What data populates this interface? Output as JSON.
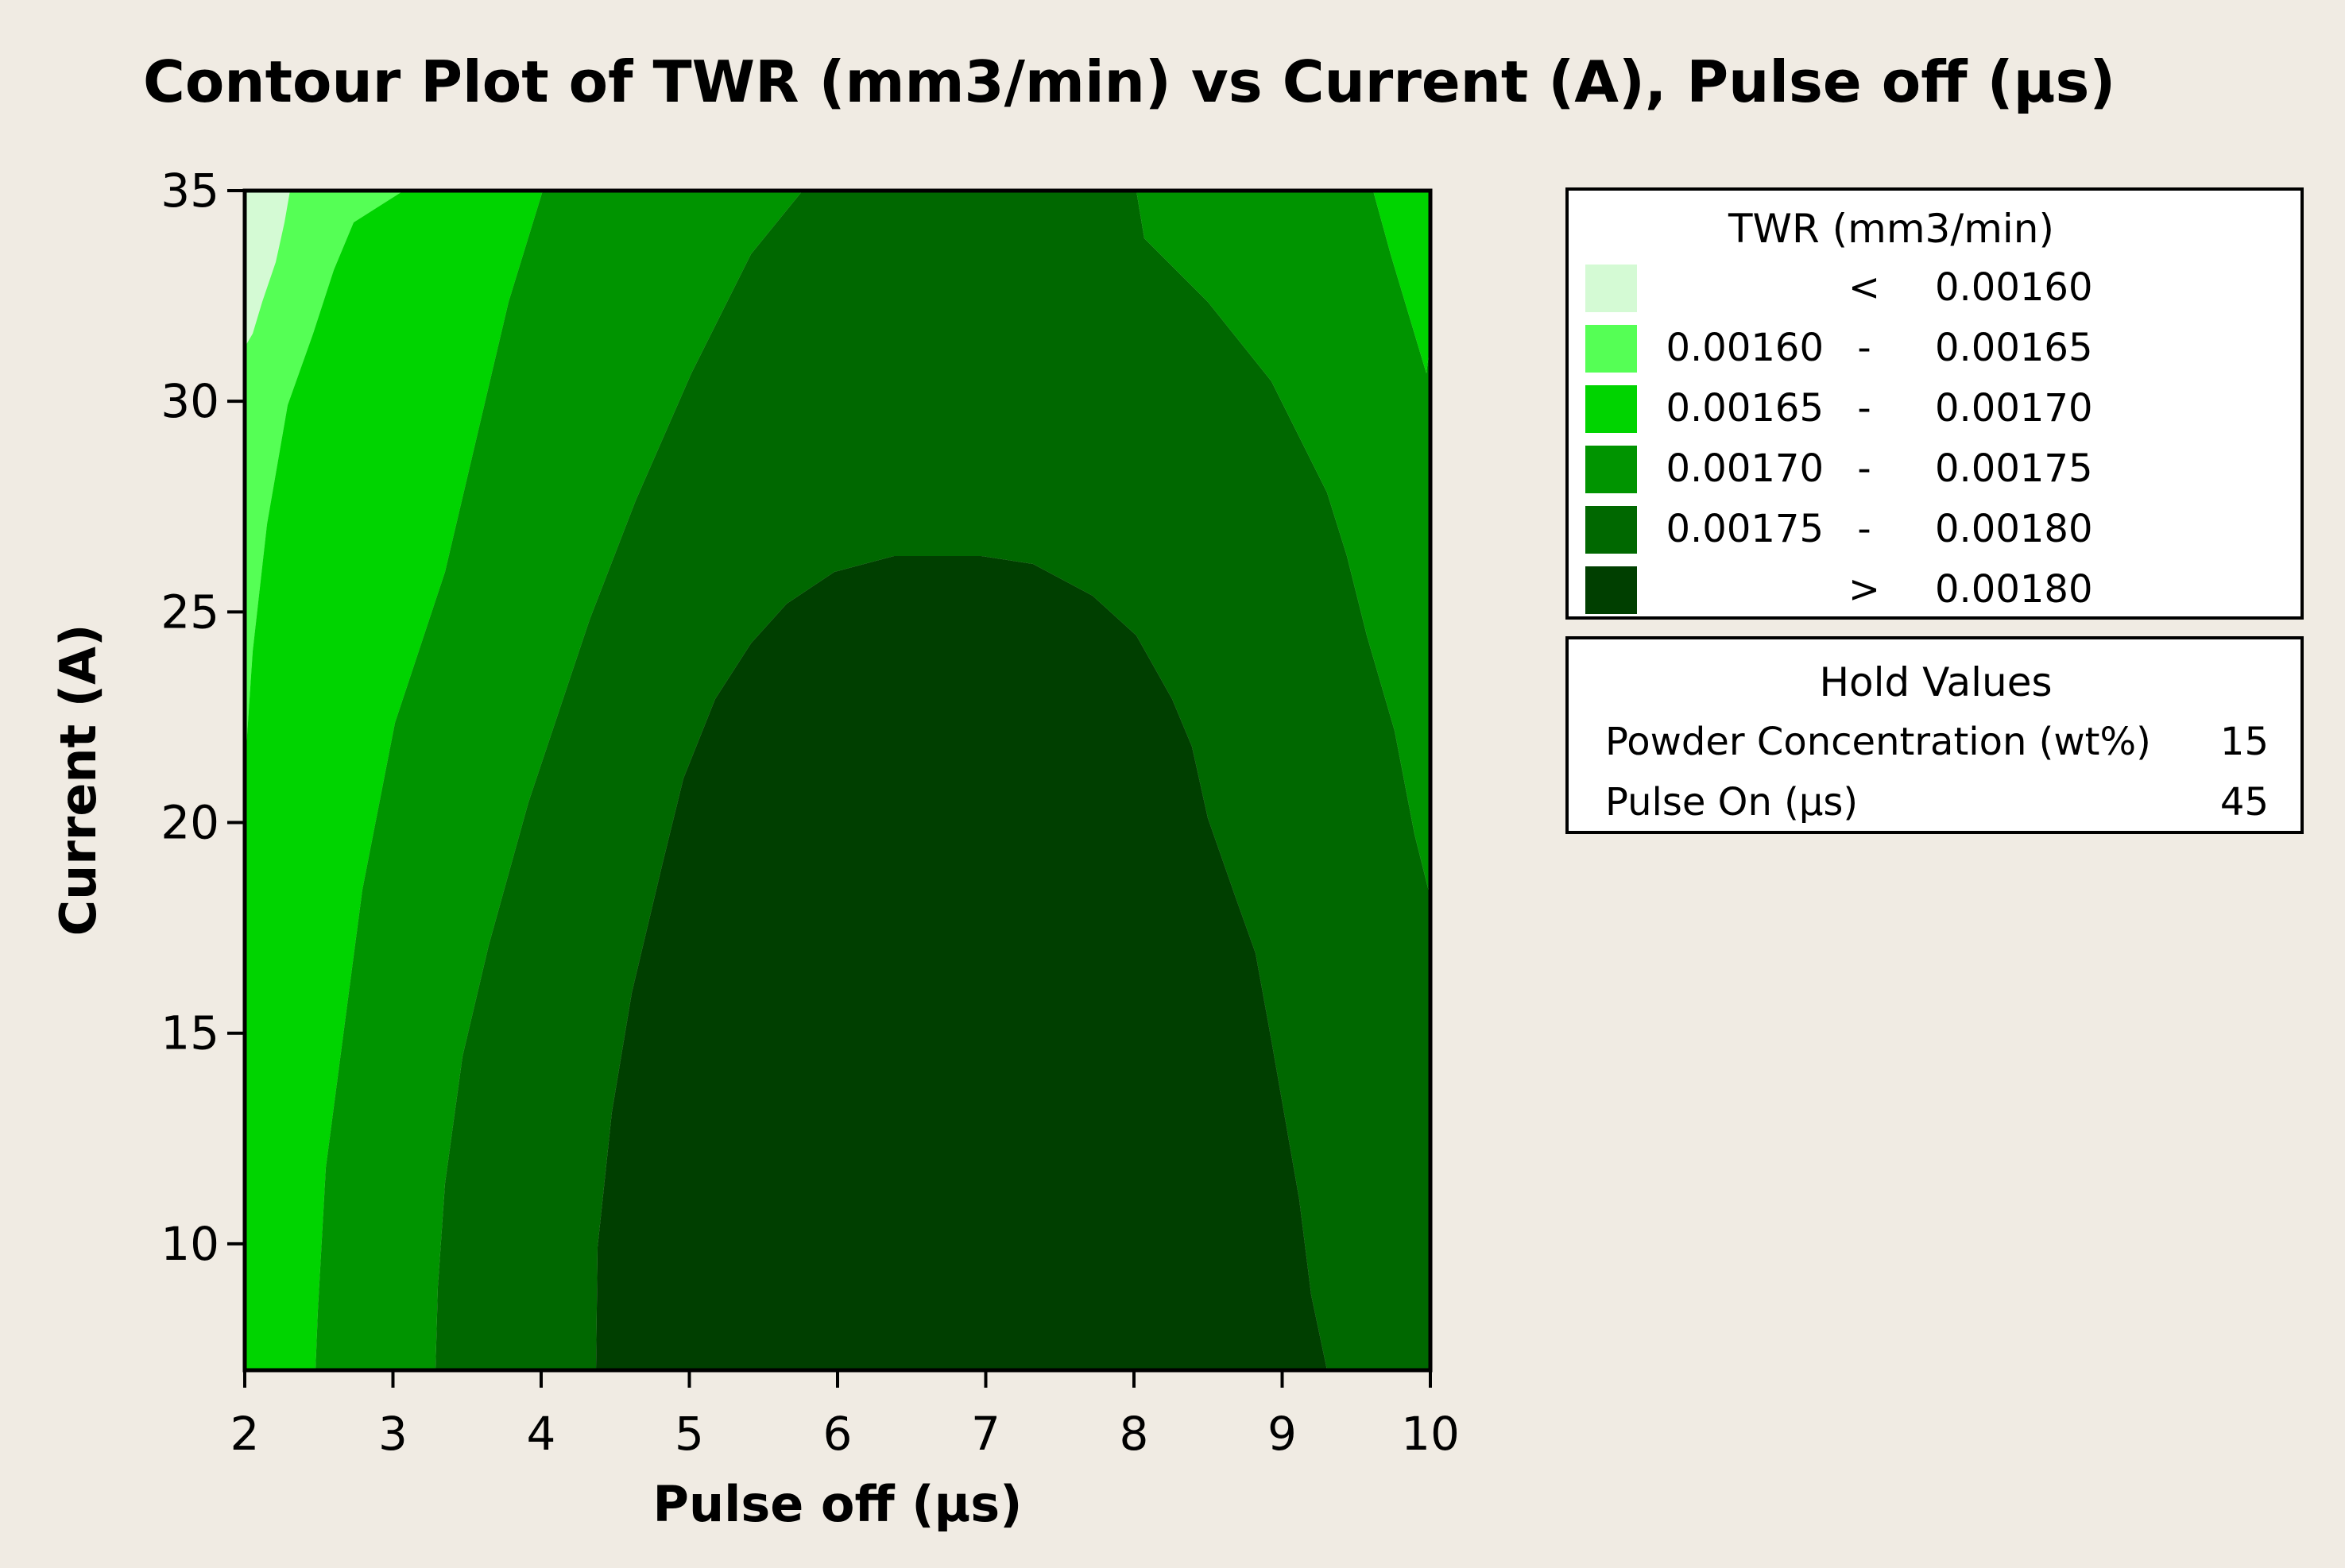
{
  "chart_data": {
    "type": "contour",
    "title": "Contour Plot of TWR (mm3/min) vs Current (A), Pulse off (µs)",
    "xlabel": "Pulse off (µs)",
    "ylabel": "Current (A)",
    "xlim": [
      2,
      10
    ],
    "ylim": [
      7,
      35
    ],
    "xticks": [
      "2",
      "3",
      "4",
      "5",
      "6",
      "7",
      "8",
      "9",
      "10"
    ],
    "yticks": [
      "10",
      "15",
      "20",
      "25",
      "30",
      "35"
    ],
    "grid": false,
    "legend_position": "right",
    "legend": {
      "title": "TWR (mm3/min)",
      "levels": [
        {
          "low": "",
          "sep": "<",
          "high": "0.00160",
          "color": "#d4fad4"
        },
        {
          "low": "0.00160",
          "sep": "-",
          "high": "0.00165",
          "color": "#55ff55"
        },
        {
          "low": "0.00165",
          "sep": "-",
          "high": "0.00170",
          "color": "#00d400"
        },
        {
          "low": "0.00170",
          "sep": "-",
          "high": "0.00175",
          "color": "#009400"
        },
        {
          "low": "0.00175",
          "sep": "-",
          "high": "0.00180",
          "color": "#006800"
        },
        {
          "low": "",
          "sep": ">",
          "high": "0.00180",
          "color": "#003f00"
        }
      ]
    },
    "hold_values": {
      "title": "Hold Values",
      "rows": [
        {
          "label": "Powder Concentration (wt%)",
          "value": "15"
        },
        {
          "label": "Pulse On (µs)",
          "value": "45"
        }
      ]
    },
    "contour_boundaries": [
      {
        "level": 0.0016,
        "points": [
          [
            2.0,
            31.2
          ],
          [
            2.3,
            35.0
          ]
        ]
      },
      {
        "level": 0.00165,
        "points": [
          [
            2.0,
            17.3
          ],
          [
            2.15,
            21.5
          ],
          [
            2.3,
            25.0
          ],
          [
            2.55,
            29.0
          ],
          [
            2.9,
            33.0
          ],
          [
            3.05,
            35.0
          ]
        ]
      },
      {
        "level": 0.0017,
        "points": [
          [
            2.48,
            7.0
          ],
          [
            2.6,
            12.0
          ],
          [
            2.8,
            17.0
          ],
          [
            3.05,
            22.0
          ],
          [
            3.45,
            27.0
          ],
          [
            3.95,
            32.0
          ],
          [
            4.05,
            35.0
          ]
        ]
      },
      {
        "level": 0.00175,
        "points": [
          [
            3.3,
            7.0
          ],
          [
            3.4,
            11.0
          ],
          [
            3.65,
            17.0
          ],
          [
            3.95,
            22.0
          ],
          [
            4.5,
            27.0
          ],
          [
            5.0,
            31.0
          ],
          [
            5.6,
            35.0
          ],
          [
            8.05,
            35.0
          ],
          [
            8.4,
            32.0
          ],
          [
            8.9,
            27.0
          ],
          [
            9.3,
            22.0
          ],
          [
            9.7,
            17.0
          ],
          [
            9.9,
            13.5
          ],
          [
            10.0,
            13.2
          ]
        ]
      },
      {
        "level": 0.0018,
        "points": [
          [
            4.35,
            7.0
          ],
          [
            4.45,
            11.0
          ],
          [
            4.6,
            15.0
          ],
          [
            5.0,
            19.0
          ],
          [
            5.4,
            22.0
          ],
          [
            6.0,
            25.0
          ],
          [
            6.4,
            26.2
          ],
          [
            7.0,
            26.4
          ],
          [
            7.5,
            25.8
          ],
          [
            8.1,
            23.0
          ],
          [
            8.6,
            19.0
          ],
          [
            8.8,
            17.0
          ],
          [
            9.2,
            12.0
          ],
          [
            9.3,
            7.0
          ]
        ]
      },
      {
        "level": 0.00175,
        "side": "right",
        "points": [
          [
            10.0,
            18.0
          ],
          [
            9.9,
            22.0
          ],
          [
            9.5,
            26.5
          ],
          [
            9.0,
            31.0
          ],
          [
            8.15,
            35.0
          ]
        ]
      },
      {
        "level": 0.0017,
        "side": "right",
        "points": [
          [
            10.0,
            31.3
          ],
          [
            9.75,
            35.0
          ]
        ]
      }
    ]
  }
}
